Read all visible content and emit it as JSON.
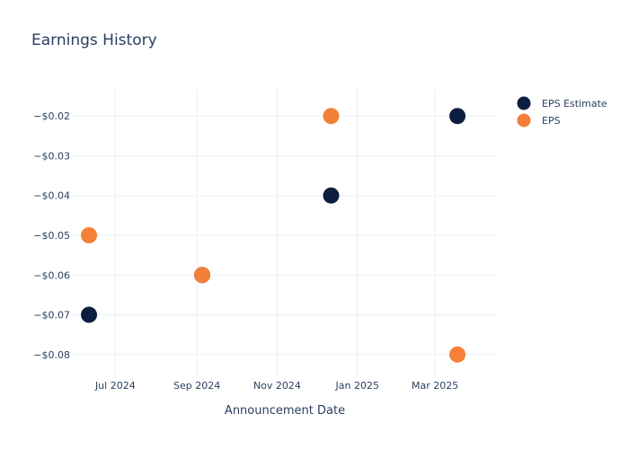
{
  "chart_data": {
    "type": "scatter",
    "title": "Earnings History",
    "xlabel": "Announcement Date",
    "ylabel": "",
    "x_ticks": [
      {
        "date": "2024-07-01",
        "label": "Jul 2024"
      },
      {
        "date": "2024-09-01",
        "label": "Sep 2024"
      },
      {
        "date": "2024-11-01",
        "label": "Nov 2024"
      },
      {
        "date": "2025-01-01",
        "label": "Jan 2025"
      },
      {
        "date": "2025-03-01",
        "label": "Mar 2025"
      }
    ],
    "xlim": [
      "2024-05-29",
      "2025-04-17"
    ],
    "y_ticks": [
      {
        "value": -0.02,
        "label": "−$0.02"
      },
      {
        "value": -0.03,
        "label": "−$0.03"
      },
      {
        "value": -0.04,
        "label": "−$0.04"
      },
      {
        "value": -0.05,
        "label": "−$0.05"
      },
      {
        "value": -0.06,
        "label": "−$0.06"
      },
      {
        "value": -0.07,
        "label": "−$0.07"
      },
      {
        "value": -0.08,
        "label": "−$0.08"
      }
    ],
    "ylim": [
      -0.0857,
      -0.0134
    ],
    "grid": true,
    "legend_position": "top-right",
    "series": [
      {
        "name": "EPS Estimate",
        "color": "#0c1e3f",
        "points": [
          {
            "x": "2024-06-11",
            "y": -0.07
          },
          {
            "x": "2024-09-05",
            "y": -0.06
          },
          {
            "x": "2024-12-12",
            "y": -0.04
          },
          {
            "x": "2025-03-18",
            "y": -0.02
          }
        ]
      },
      {
        "name": "EPS",
        "color": "#f47f36",
        "points": [
          {
            "x": "2024-06-11",
            "y": -0.05
          },
          {
            "x": "2024-09-05",
            "y": -0.06
          },
          {
            "x": "2024-12-12",
            "y": -0.02
          },
          {
            "x": "2025-03-18",
            "y": -0.08
          }
        ]
      }
    ]
  }
}
